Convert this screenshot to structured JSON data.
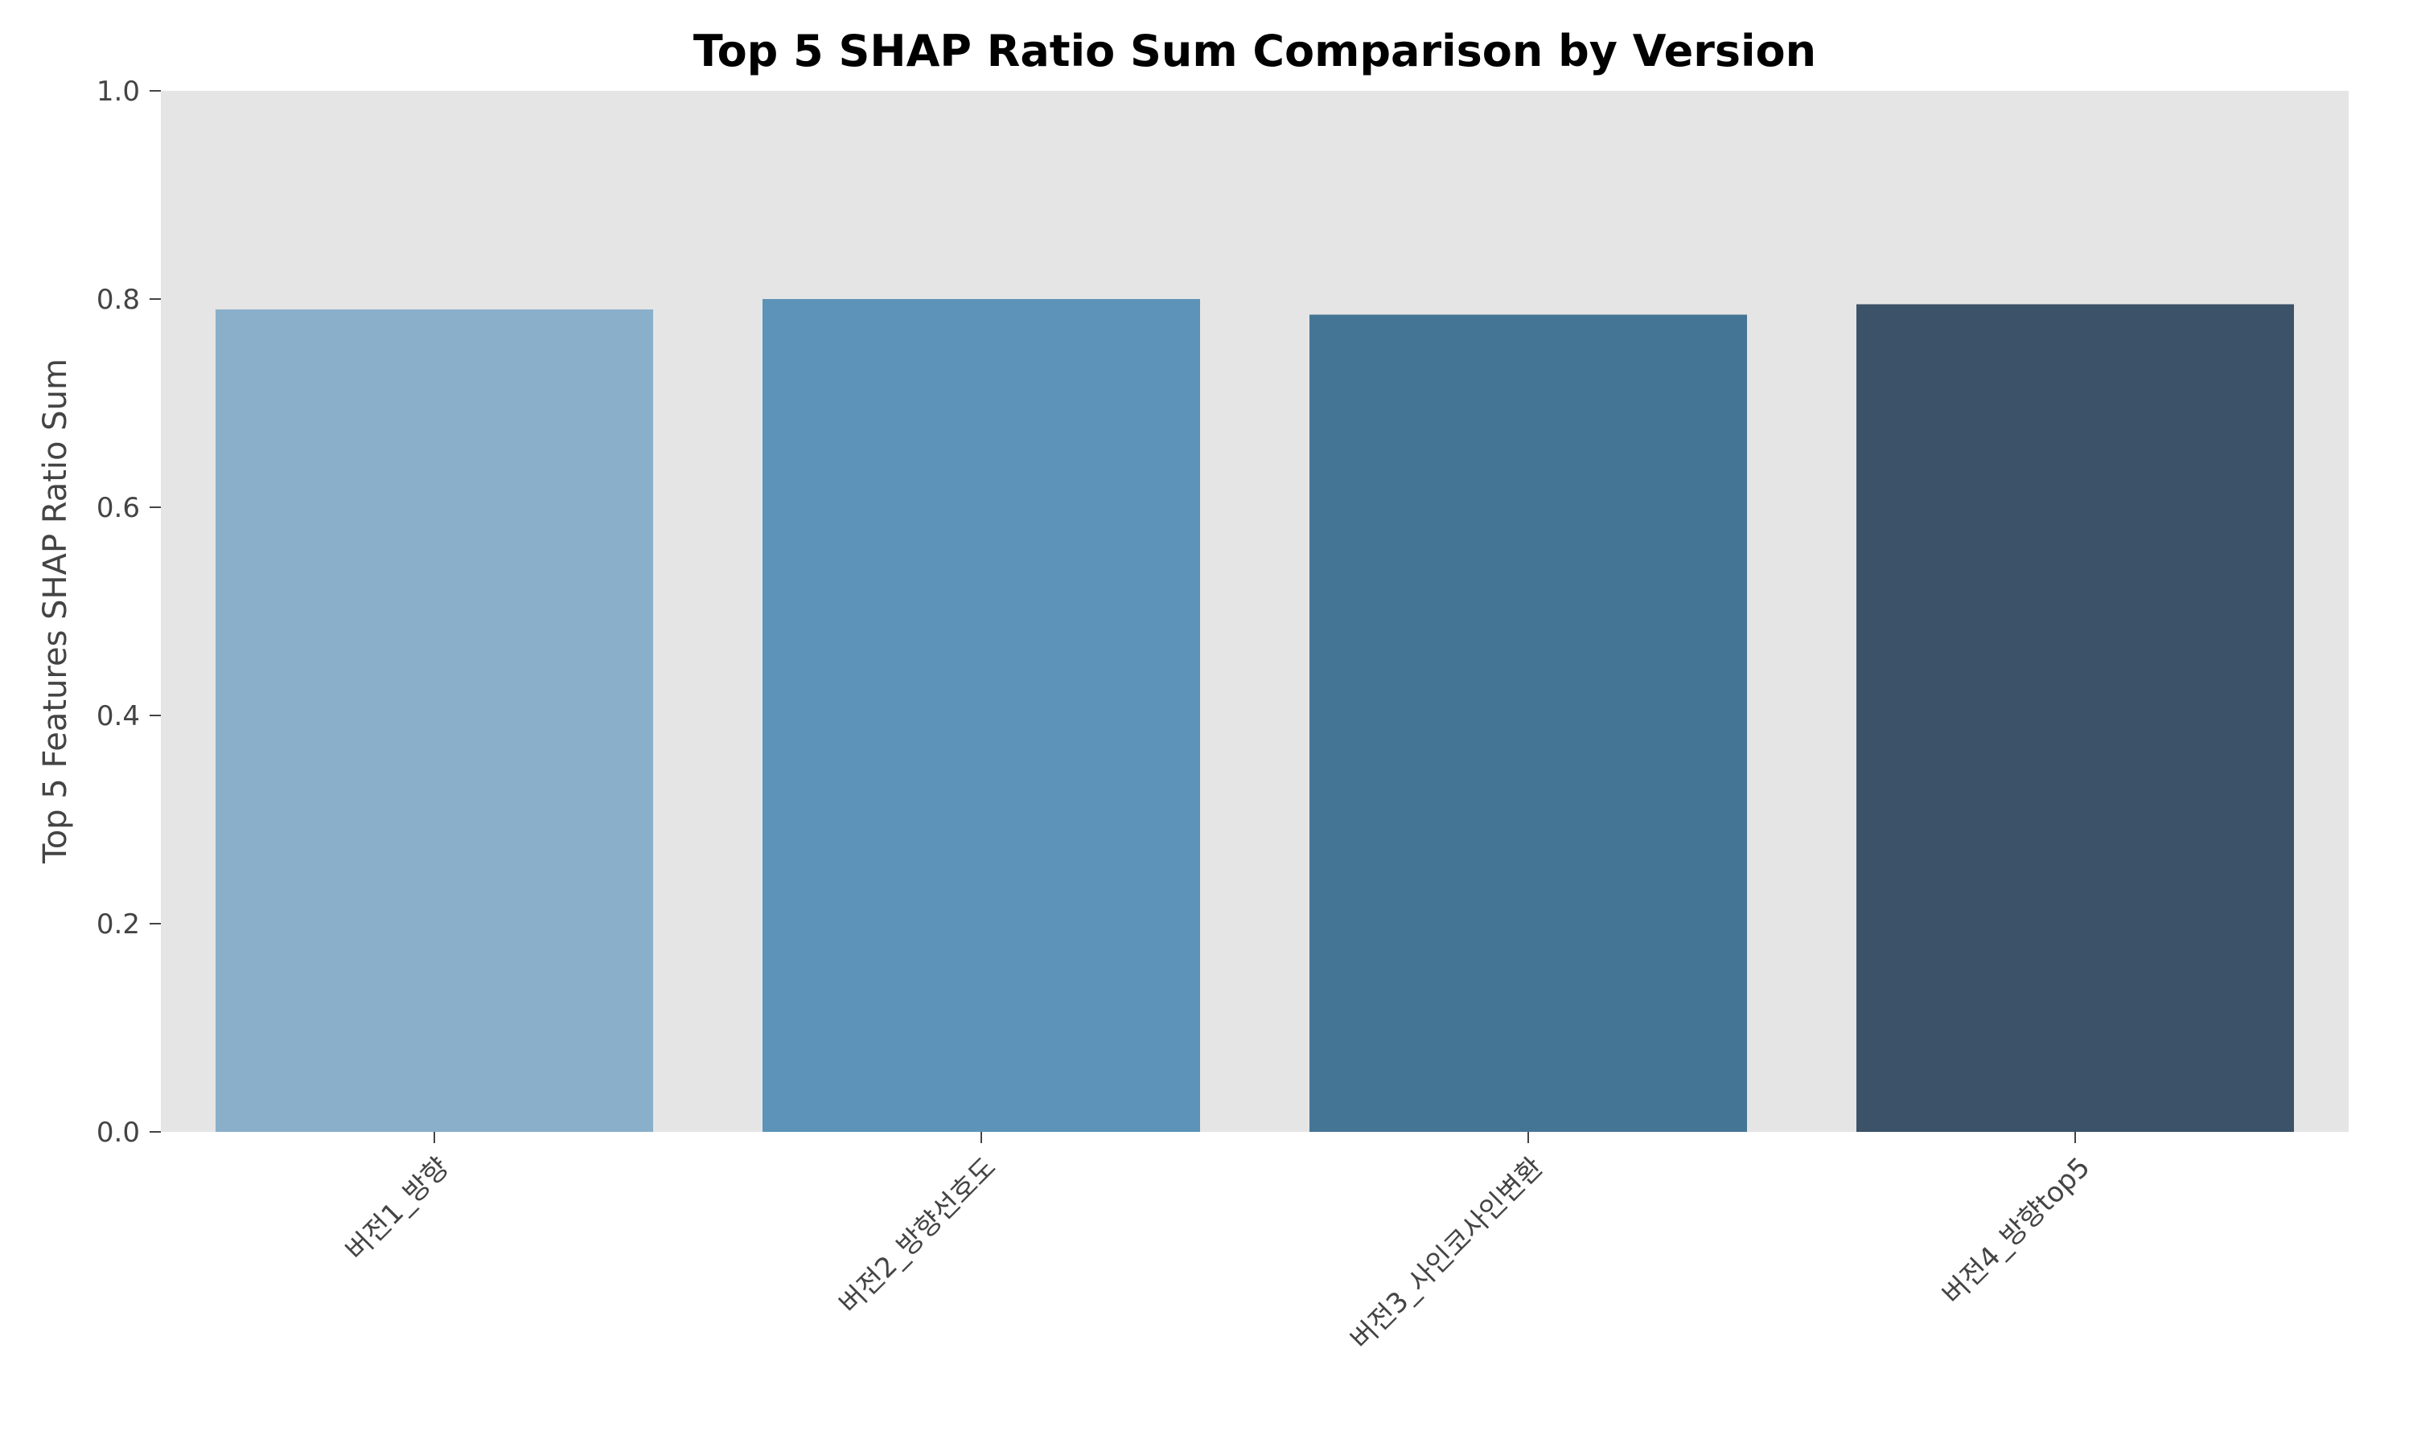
{
  "chart_data": {
    "type": "bar",
    "title": "Top 5 SHAP Ratio Sum Comparison by Version",
    "xlabel": "",
    "ylabel": "Top 5 Features SHAP Ratio Sum",
    "categories": [
      "버전1_방향",
      "버전2_방향선호도",
      "버전3_사인코사인변환",
      "버전4_방향top5"
    ],
    "values": [
      0.79,
      0.8,
      0.785,
      0.795
    ],
    "ylim": [
      0,
      1.0
    ],
    "yticks": [
      "0.0",
      "0.2",
      "0.4",
      "0.6",
      "0.8",
      "1.0"
    ],
    "grid": false,
    "legend": "none",
    "colors": {
      "plot_background": "#e5e5e5",
      "bars": [
        "#89afca",
        "#5d93b8",
        "#457595",
        "#3b5268"
      ],
      "axis": "#444444"
    }
  }
}
